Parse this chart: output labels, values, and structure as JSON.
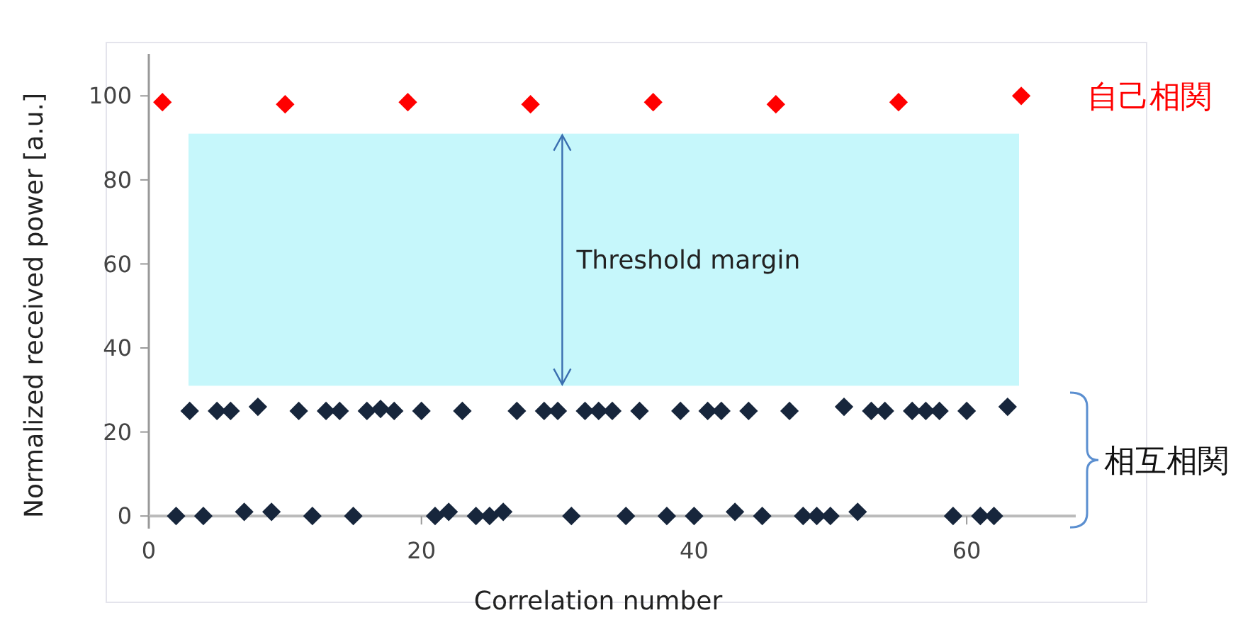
{
  "chart_data": {
    "type": "scatter",
    "xlabel": "Correlation number",
    "ylabel": "Normalized received power [a.u.]",
    "xlim": [
      0,
      68
    ],
    "ylim": [
      -3,
      110
    ],
    "xticks": [
      0,
      20,
      40,
      60
    ],
    "yticks": [
      0,
      20,
      40,
      60,
      80,
      100
    ],
    "grid": false,
    "marker": "diamond",
    "bands": [
      {
        "axis": "y",
        "from": 31,
        "to": 91,
        "label": "Threshold margin",
        "color": "#c6f7fb"
      }
    ],
    "series": [
      {
        "name": "自己相関",
        "color": "#ff0000",
        "x": [
          1,
          10,
          19,
          28,
          37,
          46,
          55,
          64
        ],
        "values": [
          98.5,
          98,
          98.5,
          98,
          98.5,
          98,
          98.5,
          100
        ]
      },
      {
        "name": "相互相関",
        "color": "#17263c",
        "x": [
          3,
          5,
          6,
          8,
          11,
          13,
          14,
          16,
          17,
          18,
          20,
          23,
          27,
          29,
          30,
          32,
          33,
          34,
          36,
          39,
          41,
          42,
          44,
          47,
          51,
          53,
          54,
          56,
          57,
          58,
          60,
          63,
          2,
          4,
          7,
          9,
          12,
          15,
          21,
          22,
          24,
          25,
          26,
          31,
          35,
          38,
          40,
          43,
          45,
          48,
          49,
          50,
          52,
          59,
          61,
          62
        ],
        "values": [
          25,
          25,
          25,
          26,
          25,
          25,
          25,
          25,
          25.5,
          25,
          25,
          25,
          25,
          25,
          25,
          25,
          25,
          25,
          25,
          25,
          25,
          25,
          25,
          25,
          26,
          25,
          25,
          25,
          25,
          25,
          25,
          26,
          0,
          0,
          1,
          1,
          0,
          0,
          0,
          1,
          0,
          0,
          1,
          0,
          0,
          0,
          0,
          1,
          0,
          0,
          0,
          0,
          1,
          0,
          0,
          0
        ]
      }
    ]
  }
}
